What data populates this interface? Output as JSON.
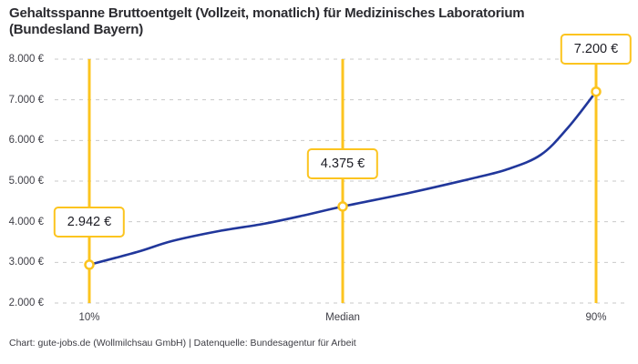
{
  "header": {
    "title_line1": "Gehaltsspanne Bruttoentgelt (Vollzeit, monatlich) für Medizinisches Laboratorium",
    "title_line2": "(Bundesland Bayern)"
  },
  "footer": {
    "credit": "Chart: gute-jobs.de (Wollmilchsau GmbH) | Datenquelle: Bundesagentur für Arbeit"
  },
  "colors": {
    "accent_yellow": "#fcc41f",
    "line_blue": "#21379b",
    "gridline": "#c9c9c9",
    "title_text": "#2b2b30",
    "axis_text": "#3e3e46"
  },
  "chart_data": {
    "type": "line",
    "title": "Gehaltsspanne Bruttoentgelt (Vollzeit, monatlich) für Medizinisches Laboratorium (Bundesland Bayern)",
    "xlabel": "",
    "ylabel": "",
    "ylim": [
      2000,
      8000
    ],
    "grid": "horizontal-dashed",
    "legend": "none",
    "yticks": [
      {
        "value": 8000,
        "label": "8.000 €"
      },
      {
        "value": 7000,
        "label": "7.000 €"
      },
      {
        "value": 6000,
        "label": "6.000 €"
      },
      {
        "value": 5000,
        "label": "5.000 €"
      },
      {
        "value": 4000,
        "label": "4.000 €"
      },
      {
        "value": 3000,
        "label": "3.000 €"
      },
      {
        "value": 2000,
        "label": "2.000 €"
      }
    ],
    "markers": [
      {
        "percentile": 10,
        "axis_label": "10%",
        "value": 2942,
        "value_label": "2.942 €"
      },
      {
        "percentile": 50,
        "axis_label": "Median",
        "value": 4375,
        "value_label": "4.375 €"
      },
      {
        "percentile": 90,
        "axis_label": "90%",
        "value": 7200,
        "value_label": "7.200 €"
      }
    ],
    "curve_points": [
      [
        10,
        2942
      ],
      [
        17.5,
        3254
      ],
      [
        23,
        3522
      ],
      [
        30.4,
        3769
      ],
      [
        37.5,
        3948
      ],
      [
        44,
        4160
      ],
      [
        50,
        4375
      ],
      [
        60.5,
        4709
      ],
      [
        70.5,
        5067
      ],
      [
        76,
        5291
      ],
      [
        81.3,
        5649
      ],
      [
        85.6,
        6320
      ],
      [
        90,
        7200
      ]
    ]
  }
}
